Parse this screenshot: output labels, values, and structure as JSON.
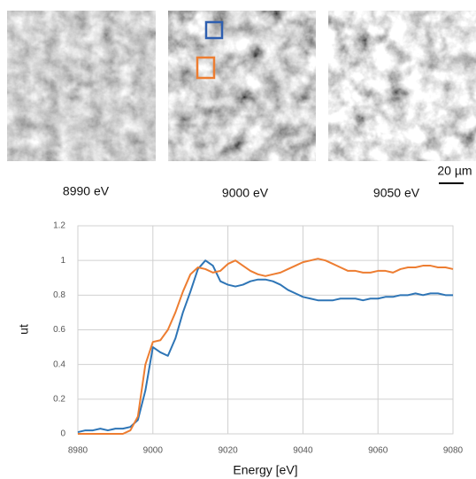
{
  "images": [
    {
      "label": "8990 eV"
    },
    {
      "label": "9000 eV"
    },
    {
      "label": "9050 eV"
    }
  ],
  "scale_bar": "20 µm",
  "chart_data": {
    "type": "line",
    "x_label": "Energy [eV]",
    "y_label": "ut",
    "x": [
      8980,
      8982,
      8984,
      8986,
      8988,
      8990,
      8992,
      8994,
      8996,
      8998,
      9000,
      9002,
      9004,
      9006,
      9008,
      9010,
      9012,
      9014,
      9016,
      9018,
      9020,
      9022,
      9024,
      9026,
      9028,
      9030,
      9032,
      9034,
      9036,
      9038,
      9040,
      9042,
      9044,
      9046,
      9048,
      9050,
      9052,
      9054,
      9056,
      9058,
      9060,
      9062,
      9064,
      9066,
      9068,
      9070,
      9072,
      9074,
      9076,
      9078,
      9080
    ],
    "series": [
      {
        "color": "#2e75b6",
        "values": [
          0.01,
          0.02,
          0.02,
          0.03,
          0.02,
          0.03,
          0.03,
          0.04,
          0.08,
          0.25,
          0.5,
          0.47,
          0.45,
          0.55,
          0.7,
          0.82,
          0.95,
          1.0,
          0.97,
          0.88,
          0.86,
          0.85,
          0.86,
          0.88,
          0.89,
          0.89,
          0.88,
          0.86,
          0.83,
          0.81,
          0.79,
          0.78,
          0.77,
          0.77,
          0.77,
          0.78,
          0.78,
          0.78,
          0.77,
          0.78,
          0.78,
          0.79,
          0.79,
          0.8,
          0.8,
          0.81,
          0.8,
          0.81,
          0.81,
          0.8,
          0.8
        ]
      },
      {
        "color": "#ed7d31",
        "values": [
          0.0,
          0.0,
          0.0,
          0.0,
          0.0,
          0.0,
          0.0,
          0.02,
          0.1,
          0.4,
          0.53,
          0.54,
          0.6,
          0.7,
          0.82,
          0.92,
          0.96,
          0.95,
          0.93,
          0.94,
          0.98,
          1.0,
          0.97,
          0.94,
          0.92,
          0.91,
          0.92,
          0.93,
          0.95,
          0.97,
          0.99,
          1.0,
          1.01,
          1.0,
          0.98,
          0.96,
          0.94,
          0.94,
          0.93,
          0.93,
          0.94,
          0.94,
          0.93,
          0.95,
          0.96,
          0.96,
          0.97,
          0.97,
          0.96,
          0.96,
          0.95
        ]
      }
    ],
    "xlim": [
      8980,
      9080
    ],
    "xticks": [
      8980,
      9000,
      9020,
      9040,
      9060,
      9080
    ],
    "ylim": [
      0,
      1.2
    ],
    "yticks": [
      0,
      0.2,
      0.4,
      0.6,
      0.8,
      1,
      1.2
    ],
    "grid": true
  }
}
